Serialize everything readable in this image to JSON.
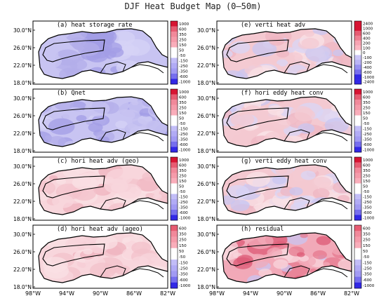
{
  "title": "DJF Heat Budget Map (0–50m)",
  "lat_labels": [
    "30.0°N",
    "26.0°N",
    "22.0°N",
    "18.0°N"
  ],
  "lon_labels": [
    "98°W",
    "94°W",
    "90°W",
    "86°W",
    "82°W"
  ],
  "colors": {
    "land": "#ffffff",
    "coast": "#000000",
    "neg_strong": "#3b3bd9",
    "neg_weak": "#d6d3f5",
    "pos_weak": "#f7d0d6",
    "pos_strong": "#cc2244"
  },
  "chart_data": [
    {
      "type": "heatmap",
      "title": "(a) heat storage rate",
      "field_sign": "negative",
      "colorbar_ticks": [
        "1000",
        "600",
        "350",
        "250",
        "150",
        "50",
        "-50",
        "-150",
        "-250",
        "-350",
        "-600",
        "-1000"
      ]
    },
    {
      "type": "heatmap",
      "title": "(b) Qnet",
      "field_sign": "negative",
      "colorbar_ticks": [
        "1000",
        "600",
        "350",
        "250",
        "150",
        "50",
        "-50",
        "-150",
        "-250",
        "-350",
        "-600",
        "-1000"
      ]
    },
    {
      "type": "heatmap",
      "title": "(c) hori heat adv (geo)",
      "field_sign": "positive",
      "colorbar_ticks": [
        "1000",
        "600",
        "350",
        "250",
        "150",
        "50",
        "-50",
        "-150",
        "-250",
        "-350",
        "-600",
        "-1000"
      ]
    },
    {
      "type": "heatmap",
      "title": "(d) hori heat adv (ageo)",
      "field_sign": "positive",
      "colorbar_ticks": [
        "600",
        "350",
        "250",
        "150",
        "50",
        "-50",
        "-150",
        "-250",
        "-350",
        "-600",
        "-1000"
      ]
    },
    {
      "type": "heatmap",
      "title": "(e) verti heat adv",
      "field_sign": "mixed",
      "colorbar_ticks": [
        "2400",
        "1000",
        "600",
        "400",
        "200",
        "100",
        "0",
        "-100",
        "-200",
        "-400",
        "-600",
        "-1000",
        "-2400"
      ]
    },
    {
      "type": "heatmap",
      "title": "(f) hori eddy heat conv",
      "field_sign": "mixed",
      "colorbar_ticks": [
        "1000",
        "600",
        "350",
        "250",
        "150",
        "50",
        "-50",
        "-150",
        "-250",
        "-350",
        "-600",
        "-1000"
      ]
    },
    {
      "type": "heatmap",
      "title": "(g) verti eddy heat conv",
      "field_sign": "mixed",
      "colorbar_ticks": [
        "1000",
        "600",
        "350",
        "250",
        "150",
        "50",
        "-50",
        "-150",
        "-250",
        "-350",
        "-600",
        "-1000"
      ]
    },
    {
      "type": "heatmap",
      "title": "(h) residual",
      "field_sign": "mixed_strong",
      "colorbar_ticks": [
        "600",
        "350",
        "250",
        "150",
        "50",
        "-50",
        "-150",
        "-250",
        "-350",
        "-600",
        "-1000"
      ]
    }
  ]
}
